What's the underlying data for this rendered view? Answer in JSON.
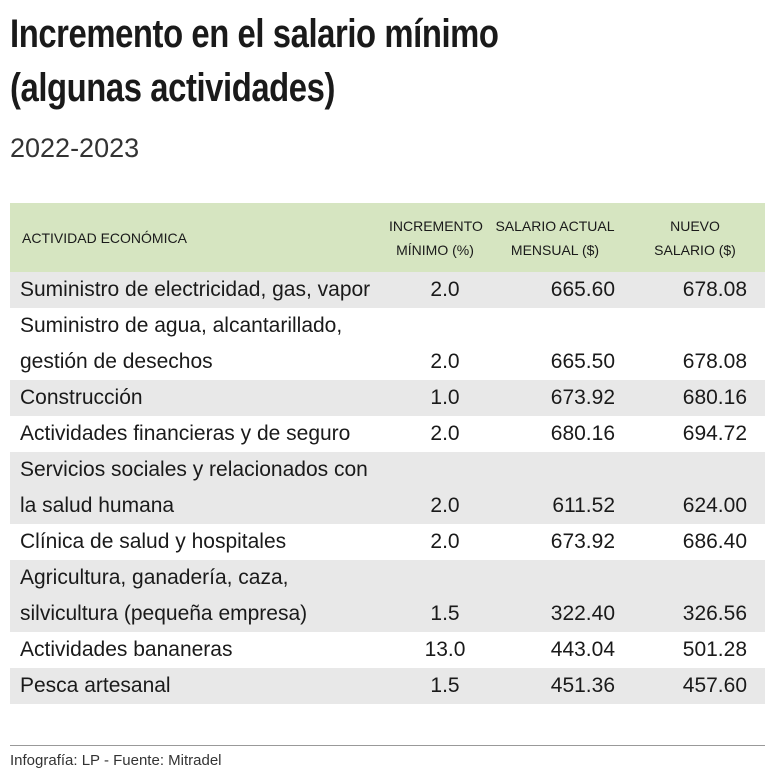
{
  "header": {
    "title_line1": "Incremento en el salario mínimo",
    "title_line2": "(algunas actividades)",
    "subtitle": "2022-2023"
  },
  "table": {
    "columns": [
      "ACTIVIDAD ECONÓMICA",
      "INCREMENTO MÍNIMO (%)",
      "SALARIO ACTUAL MENSUAL ($)",
      "NUEVO SALARIO ($)"
    ],
    "rows": [
      [
        "Suministro de electricidad, gas, vapor",
        "2.0",
        "665.60",
        "678.08"
      ],
      [
        "Suministro de agua, alcantarillado, gestión de desechos",
        "2.0",
        "665.50",
        "678.08"
      ],
      [
        "Construcción",
        "1.0",
        "673.92",
        "680.16"
      ],
      [
        "Actividades financieras y de seguro",
        "2.0",
        "680.16",
        "694.72"
      ],
      [
        "Servicios sociales y relacionados con la salud humana",
        "2.0",
        "611.52",
        "624.00"
      ],
      [
        "Clínica de salud y hospitales",
        "2.0",
        "673.92",
        "686.40"
      ],
      [
        "Agricultura, ganadería, caza, silvicultura (pequeña empresa)",
        "1.5",
        "322.40",
        "326.56"
      ],
      [
        "Actividades bananeras",
        "13.0",
        "443.04",
        "501.28"
      ],
      [
        "Pesca artesanal",
        "1.5",
        "451.36",
        "457.60"
      ]
    ]
  },
  "footer": {
    "credit": "Infografía: LP - Fuente: Mitradel"
  }
}
